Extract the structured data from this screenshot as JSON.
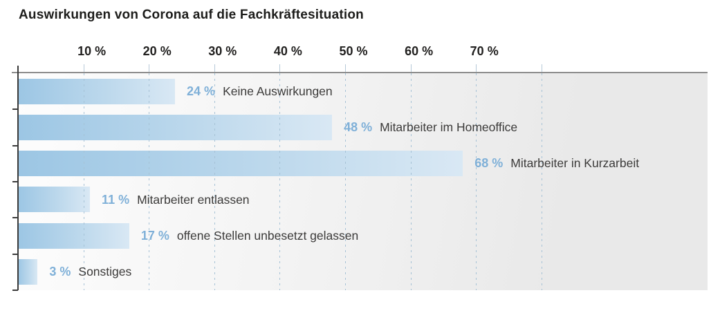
{
  "title": "Auswirkungen von Corona auf die Fachkräftesituation",
  "chart_data": {
    "type": "bar",
    "orientation": "horizontal",
    "title": "Auswirkungen von Corona auf die Fachkräftesituation",
    "categories": [
      "Keine Auswirkungen",
      "Mitarbeiter im Homeoffice",
      "Mitarbeiter in Kurzarbeit",
      "Mitarbeiter entlassen",
      "offene Stellen unbesetzt gelassen",
      "Sonstiges"
    ],
    "values": [
      24,
      48,
      68,
      11,
      17,
      3
    ],
    "value_labels": [
      "24 %",
      "48 %",
      "68 %",
      "11 %",
      "17 %",
      "3 %"
    ],
    "xlabel": "",
    "ylabel": "",
    "x_axis_position": "top",
    "x_ticks": [
      "10 %",
      "20 %",
      "30 %",
      "40 %",
      "50 %",
      "60 %",
      "70 %"
    ],
    "x_tick_values": [
      10,
      20,
      30,
      40,
      50,
      60,
      70
    ],
    "gridline_values": [
      10,
      20,
      30,
      40,
      50,
      60,
      70,
      80
    ],
    "xlim": [
      0,
      105
    ],
    "grid": "dashed-vertical",
    "legend": "none",
    "colors": {
      "bar_gradient_start": "#9cc6e4",
      "bar_gradient_end": "#d9e8f4",
      "value_text": "#7fb0d8",
      "category_text": "#3b3a39",
      "tick_label_text": "#21201f",
      "title_text": "#1d1d1b",
      "gridline": "#a6c2d6",
      "x_axis_line": "#8d8d8d",
      "y_axis_line": "#3a3a3a",
      "plot_bg_left": "#fdfdfd",
      "plot_bg_right": "#e9e9e9"
    }
  }
}
